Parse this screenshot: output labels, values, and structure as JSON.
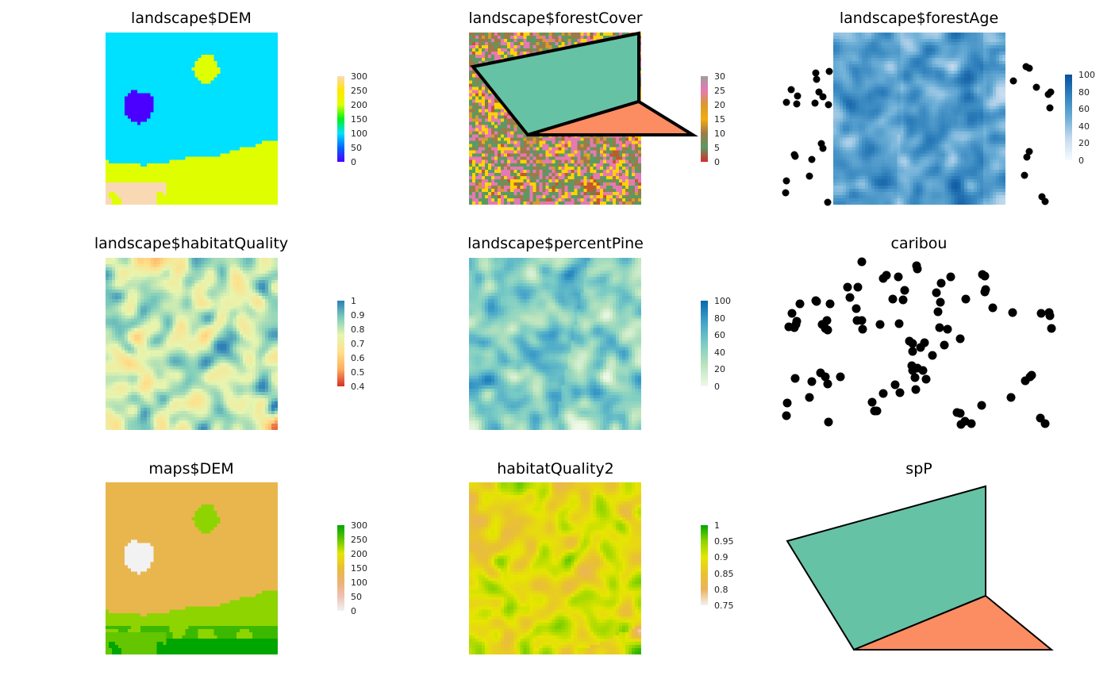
{
  "panels": [
    {
      "id": "p1",
      "title": "landscape$DEM",
      "kind": "raster",
      "palette": "dem1",
      "legend": {
        "labels": [
          "300",
          "250",
          "200",
          "150",
          "100",
          "50",
          "0"
        ]
      },
      "colors": [
        "#f9d9b4",
        "#ffe700",
        "#dfff00",
        "#00f21b",
        "#00e0ff",
        "#0066ff",
        "#4b00ff"
      ]
    },
    {
      "id": "p2",
      "title": "landscape$forestCover",
      "kind": "raster_poly",
      "palette": "forest",
      "legend": {
        "labels": [
          "30",
          "25",
          "20",
          "15",
          "10",
          "5",
          "0"
        ]
      },
      "colors": [
        "#9e9e9e",
        "#e779b2",
        "#d99a2b",
        "#f2ab11",
        "#9c7a4a",
        "#5a9a62",
        "#d92a2a"
      ]
    },
    {
      "id": "p3",
      "title": "landscape$forestAge",
      "kind": "raster_points",
      "palette": "blues",
      "legend": {
        "labels": [
          "100",
          "80",
          "60",
          "40",
          "20",
          "0"
        ]
      },
      "colors": [
        "#08519c",
        "#3182bd",
        "#6baed6",
        "#c6dbef",
        "#f7fbff"
      ]
    },
    {
      "id": "p4",
      "title": "landscape$habitatQuality",
      "kind": "raster",
      "palette": "rdylgn",
      "legend": {
        "labels": [
          "1",
          "0.9",
          "0.8",
          "0.7",
          "0.6",
          "0.5",
          "0.4"
        ]
      },
      "colors": [
        "#2c7fb8",
        "#7fcdbb",
        "#e6f5b0",
        "#fee08b",
        "#fdae61",
        "#d73027"
      ]
    },
    {
      "id": "p5",
      "title": "landscape$percentPine",
      "kind": "raster",
      "palette": "gnbu",
      "legend": {
        "labels": [
          "100",
          "80",
          "60",
          "40",
          "20",
          "0"
        ]
      },
      "colors": [
        "#0868ac",
        "#43a2ca",
        "#7bccc4",
        "#bae4bc",
        "#f0f9e8"
      ]
    },
    {
      "id": "p6",
      "title": "caribou",
      "kind": "points"
    },
    {
      "id": "p7",
      "title": "maps$DEM",
      "kind": "raster",
      "palette": "terrain",
      "legend": {
        "labels": [
          "300",
          "250",
          "200",
          "150",
          "100",
          "50",
          "0"
        ]
      },
      "colors": [
        "#00a600",
        "#63c600",
        "#e6e600",
        "#e9bd3a",
        "#ecb176",
        "#efc2b3",
        "#f2f2f2"
      ]
    },
    {
      "id": "p8",
      "title": "habitatQuality2",
      "kind": "raster",
      "palette": "terrain2",
      "legend": {
        "labels": [
          "1",
          "0.95",
          "0.9",
          "0.85",
          "0.8",
          "0.75"
        ]
      },
      "colors": [
        "#00a600",
        "#8ed400",
        "#e6e600",
        "#e8c32e",
        "#ebb25e",
        "#f2f2f2"
      ]
    },
    {
      "id": "p9",
      "title": "spP",
      "kind": "polygons"
    }
  ],
  "polygon_colors": {
    "green": "#66c2a5",
    "orange": "#fc8d62"
  }
}
